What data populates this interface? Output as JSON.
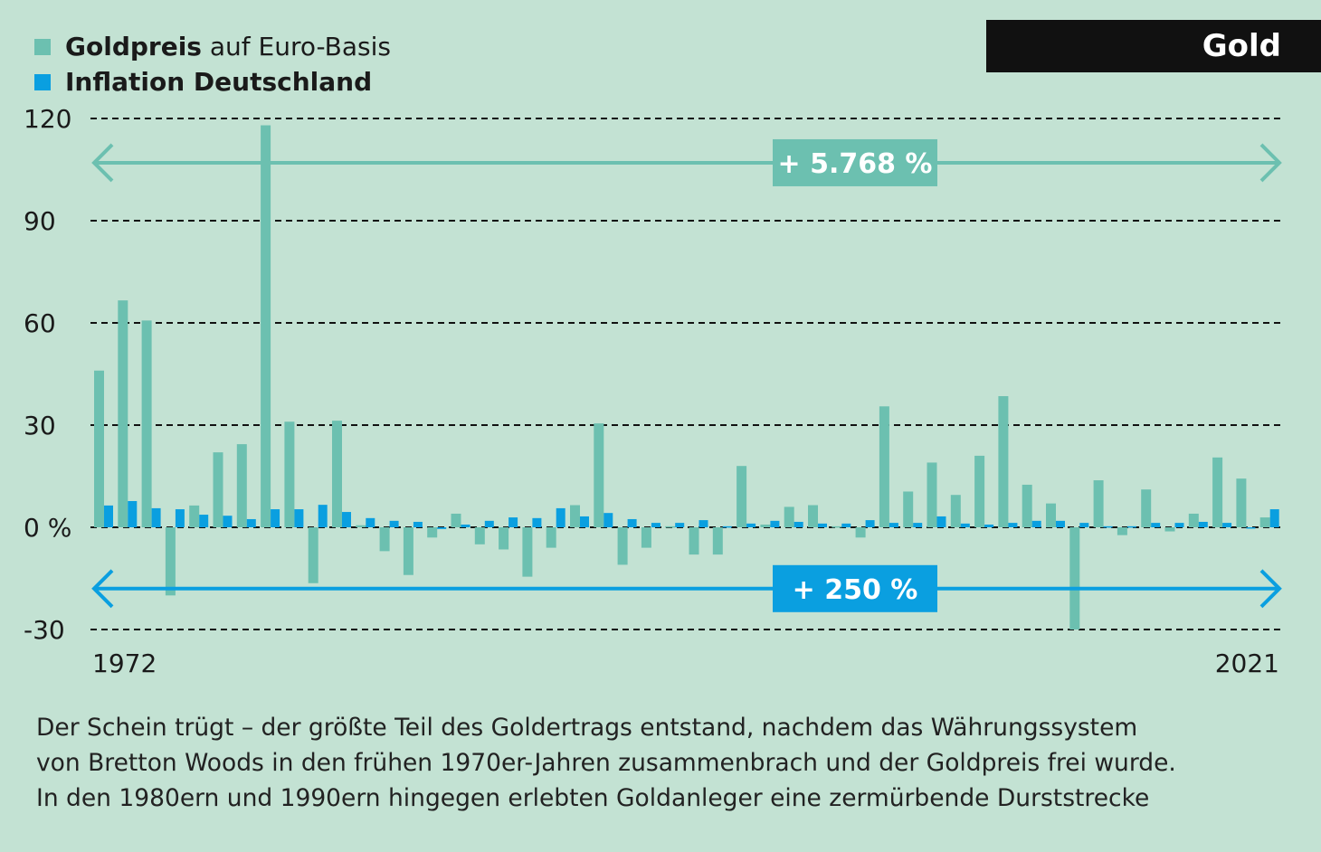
{
  "badge": "Gold",
  "legend": [
    {
      "bold": "Goldpreis",
      "rest": " auf Euro-Basis",
      "color": "#6cc0b0"
    },
    {
      "bold": "Inflation Deutschland",
      "rest": "",
      "color": "#0a9fe0"
    }
  ],
  "caption": [
    "Der Schein trügt – der größte Teil des Goldertrags entstand, nachdem das Währungssystem",
    "von Bretton Woods in den frühen 1970er-Jahren zusammenbrach und der Goldpreis frei wurde.",
    "In den 1980ern und 1990ern hingegen erlebten Goldanleger eine zermürbende Durststrecke"
  ],
  "chart_data": {
    "type": "bar",
    "ylim": [
      -30,
      120
    ],
    "yticks": [
      120,
      90,
      60,
      30,
      0,
      -30
    ],
    "ytick_labels": [
      "120",
      "90",
      "60",
      "30",
      "0 %",
      "-30"
    ],
    "xtick_labels": [
      "1972",
      "2021"
    ],
    "grid": true,
    "years": [
      1972,
      1973,
      1974,
      1975,
      1976,
      1977,
      1978,
      1979,
      1980,
      1981,
      1982,
      1983,
      1984,
      1985,
      1986,
      1987,
      1988,
      1989,
      1990,
      1991,
      1992,
      1993,
      1994,
      1995,
      1996,
      1997,
      1998,
      1999,
      2000,
      2001,
      2002,
      2003,
      2004,
      2005,
      2006,
      2007,
      2008,
      2009,
      2010,
      2011,
      2012,
      2013,
      2014,
      2015,
      2016,
      2017,
      2018,
      2019,
      2020,
      2021
    ],
    "series": [
      {
        "name": "Goldpreis auf Euro-Basis",
        "color": "#6cc0b0",
        "values": [
          46,
          66.6,
          60.7,
          -20,
          6.4,
          22,
          24.4,
          118,
          31,
          -16.4,
          31.3,
          0.6,
          -7,
          -14,
          -3,
          4,
          -5,
          -6.5,
          -14.5,
          -6,
          6.5,
          30.5,
          -11,
          -6,
          0.3,
          -8,
          -8,
          18,
          0.8,
          6,
          6.5,
          0.3,
          -3,
          35.5,
          10.5,
          19,
          9.5,
          21,
          38.5,
          12.5,
          7,
          -30,
          13.8,
          -2.3,
          11.1,
          -1.2,
          4,
          20.5,
          14.3,
          2.9
        ]
      },
      {
        "name": "Inflation Deutschland",
        "color": "#0a9fe0",
        "values": [
          6.4,
          7.7,
          5.6,
          5.3,
          3.7,
          3.4,
          2.4,
          5.3,
          5.3,
          6.6,
          4.5,
          2.7,
          1.9,
          1.6,
          -0.5,
          0.8,
          1.9,
          2.9,
          2.7,
          5.6,
          3.2,
          4.2,
          2.4,
          1.3,
          1.3,
          2.1,
          0.3,
          1.1,
          1.9,
          1.6,
          1.1,
          1.1,
          2.1,
          1.3,
          1.3,
          3.2,
          1.1,
          0.8,
          1.3,
          1.9,
          1.9,
          1.3,
          0.3,
          0.3,
          1.3,
          1.3,
          1.6,
          1.3,
          -0.3,
          5.3
        ]
      }
    ],
    "annotations": [
      {
        "label": "+ 5.768 %",
        "series": "Goldpreis auf Euro-Basis",
        "y": 107,
        "color": "#6cc0b0"
      },
      {
        "label": "+ 250 %",
        "series": "Inflation Deutschland",
        "y": -18,
        "color": "#0a9fe0"
      }
    ]
  }
}
